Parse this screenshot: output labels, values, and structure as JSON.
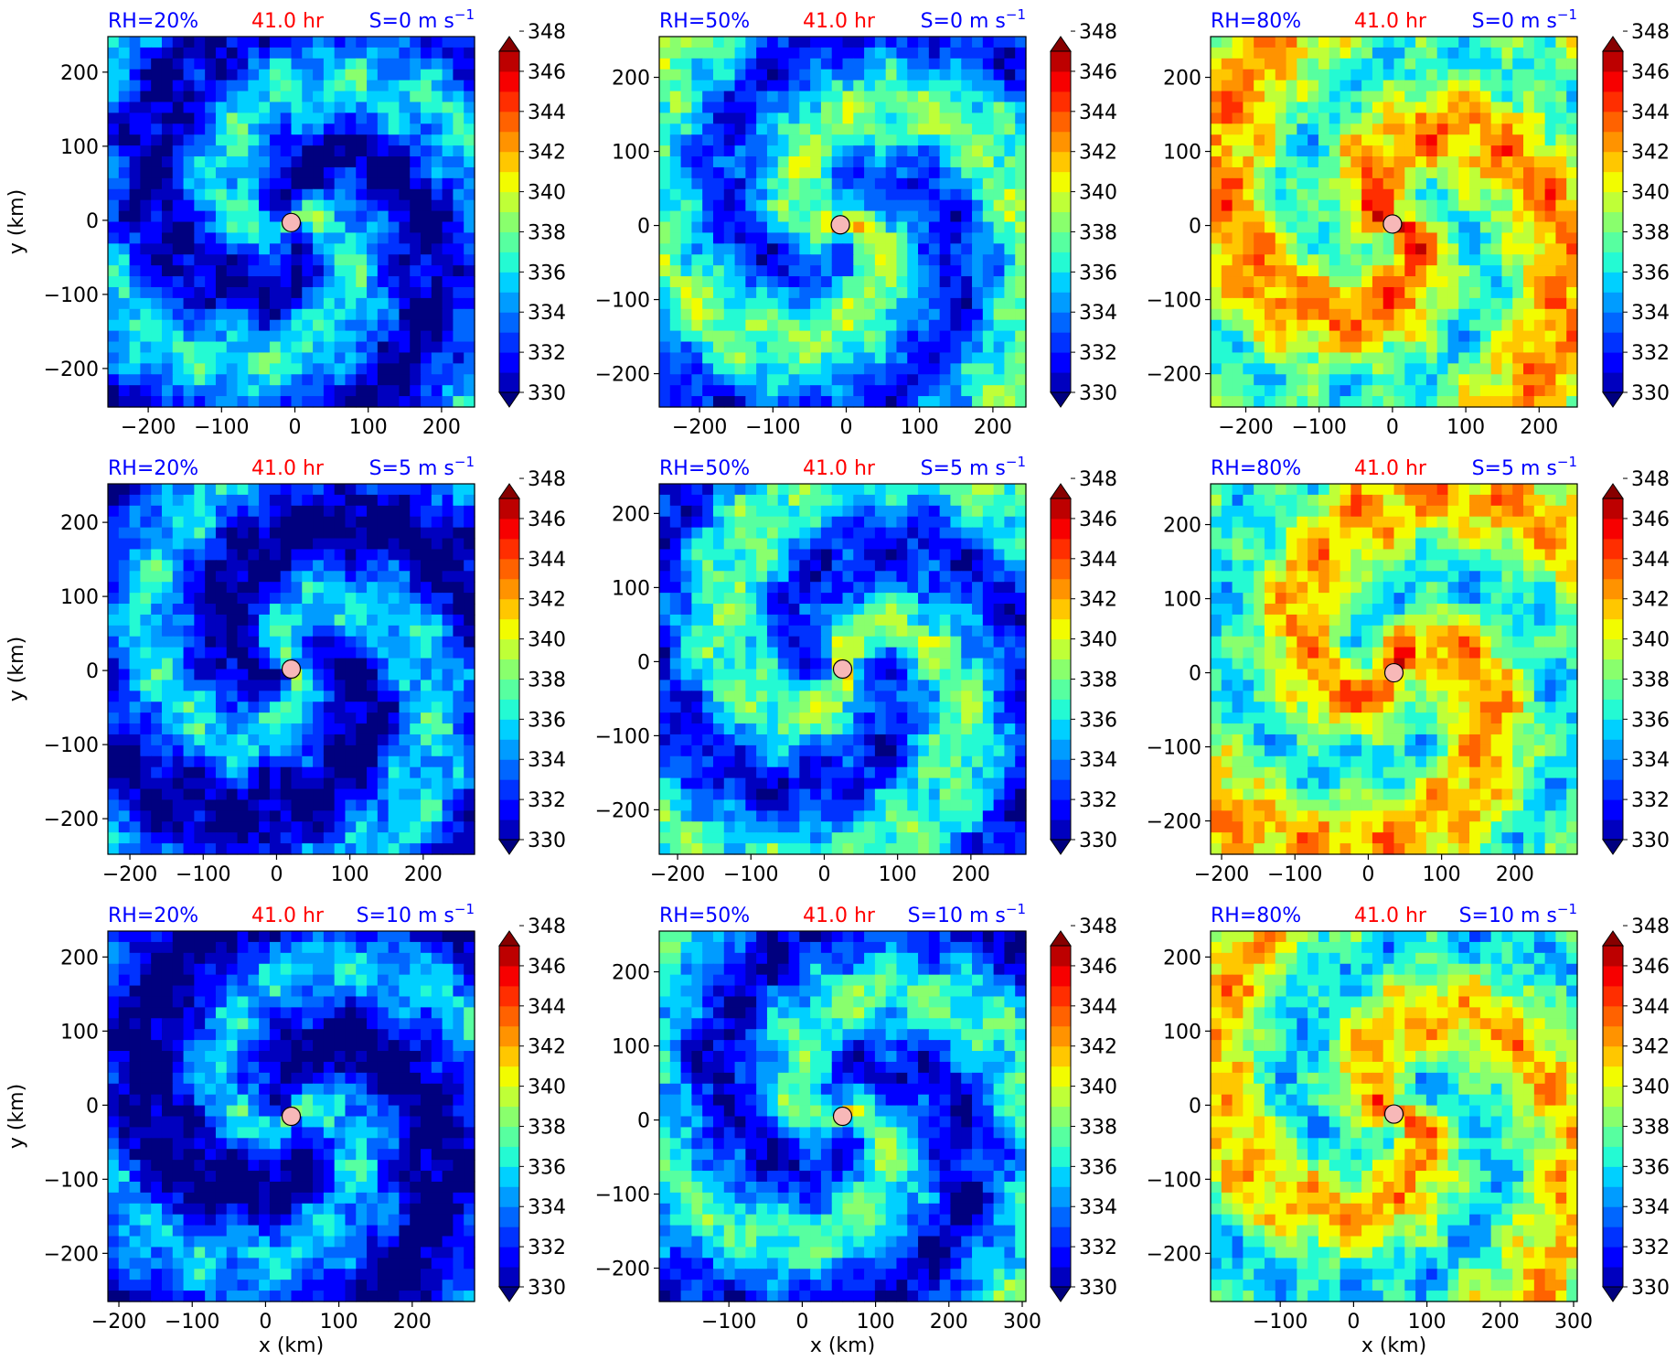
{
  "figure": {
    "colorbar": {
      "tick_labels": [
        "330",
        "332",
        "334",
        "336",
        "338",
        "340",
        "342",
        "344",
        "346",
        "348"
      ],
      "colors": [
        "#00007f",
        "#0000bf",
        "#0000ff",
        "#0032ff",
        "#0066ff",
        "#009cff",
        "#00d0ff",
        "#24fad3",
        "#57ffa0",
        "#89ff6d",
        "#bfff37",
        "#f2fc00",
        "#ffc700",
        "#ff9300",
        "#ff6200",
        "#ff2e00",
        "#f70000",
        "#bd0000",
        "#870000"
      ]
    },
    "labels": {
      "time": "41.0 hr",
      "xlabel": "x (km)",
      "ylabel": "y (km)"
    },
    "colors": {
      "title_blue": "#0000ff",
      "title_red": "#ff0000",
      "center_marker": "#f7b8b8"
    }
  },
  "chart_data": [
    {
      "type": "heatmap",
      "rh": "RH=20%",
      "time": "41.0 hr",
      "shear": "S=0",
      "xticks": [
        "−200",
        "−100",
        "0",
        "100",
        "200"
      ],
      "yticks": [
        "200",
        "100",
        "0",
        "−100",
        "−200"
      ],
      "xlim": [
        -255,
        245
      ],
      "ylim": [
        -252,
        248
      ],
      "center": [
        -5,
        -3
      ],
      "mean_level": 3.5,
      "core_level": 6,
      "ylabel": "y (km)",
      "xlabel": ""
    },
    {
      "type": "heatmap",
      "rh": "RH=50%",
      "time": "41.0 hr",
      "shear": "S=0",
      "xticks": [
        "−200",
        "−100",
        "0",
        "100",
        "200"
      ],
      "yticks": [
        "200",
        "100",
        "0",
        "−100",
        "−200"
      ],
      "xlim": [
        -255,
        245
      ],
      "ylim": [
        -245,
        255
      ],
      "center": [
        -8,
        1
      ],
      "mean_level": 5.5,
      "core_level": 12,
      "ylabel": "",
      "xlabel": ""
    },
    {
      "type": "heatmap",
      "rh": "RH=80%",
      "time": "41.0 hr",
      "shear": "S=0",
      "xticks": [
        "−200",
        "−100",
        "0",
        "100",
        "200"
      ],
      "yticks": [
        "200",
        "100",
        "0",
        "−100",
        "−200"
      ],
      "xlim": [
        -248,
        252
      ],
      "ylim": [
        -245,
        255
      ],
      "center": [
        0,
        2
      ],
      "mean_level": 10,
      "core_level": 17,
      "ylabel": "",
      "xlabel": ""
    },
    {
      "type": "heatmap",
      "rh": "RH=20%",
      "time": "41.0 hr",
      "shear": "S=5",
      "xticks": [
        "−200",
        "−100",
        "0",
        "100",
        "200"
      ],
      "yticks": [
        "200",
        "100",
        "0",
        "−100",
        "−200"
      ],
      "xlim": [
        -230,
        270
      ],
      "ylim": [
        -248,
        252
      ],
      "center": [
        20,
        2
      ],
      "mean_level": 3.0,
      "core_level": 7,
      "ylabel": "y (km)",
      "xlabel": ""
    },
    {
      "type": "heatmap",
      "rh": "RH=50%",
      "time": "41.0 hr",
      "shear": "S=5",
      "xticks": [
        "−200",
        "−100",
        "0",
        "100",
        "200"
      ],
      "yticks": [
        "200",
        "100",
        "0",
        "−100",
        "−200"
      ],
      "xlim": [
        -225,
        275
      ],
      "ylim": [
        -260,
        240
      ],
      "center": [
        25,
        -10
      ],
      "mean_level": 5.0,
      "core_level": 11,
      "ylabel": "",
      "xlabel": ""
    },
    {
      "type": "heatmap",
      "rh": "RH=80%",
      "time": "41.0 hr",
      "shear": "S=5",
      "xticks": [
        "−200",
        "−100",
        "0",
        "100",
        "200"
      ],
      "yticks": [
        "200",
        "100",
        "0",
        "−100",
        "−200"
      ],
      "xlim": [
        -215,
        285
      ],
      "ylim": [
        -245,
        255
      ],
      "center": [
        35,
        0
      ],
      "mean_level": 9.5,
      "core_level": 17,
      "ylabel": "",
      "xlabel": ""
    },
    {
      "type": "heatmap",
      "rh": "RH=20%",
      "time": "41.0 hr",
      "shear": "S=10",
      "xticks": [
        "−200",
        "−100",
        "0",
        "100",
        "200"
      ],
      "yticks": [
        "200",
        "100",
        "0",
        "−100",
        "−200"
      ],
      "xlim": [
        -215,
        285
      ],
      "ylim": [
        -265,
        235
      ],
      "center": [
        35,
        -15
      ],
      "mean_level": 2.5,
      "core_level": 8,
      "ylabel": "y (km)",
      "xlabel": "x (km)"
    },
    {
      "type": "heatmap",
      "rh": "RH=50%",
      "time": "41.0 hr",
      "shear": "S=10",
      "xticks": [
        "−100",
        "0",
        "100",
        "200",
        "300"
      ],
      "yticks": [
        "200",
        "100",
        "0",
        "−100",
        "−200"
      ],
      "xlim": [
        -195,
        305
      ],
      "ylim": [
        -245,
        255
      ],
      "center": [
        55,
        5
      ],
      "mean_level": 4.5,
      "core_level": 10,
      "ylabel": "",
      "xlabel": "x (km)"
    },
    {
      "type": "heatmap",
      "rh": "RH=80%",
      "time": "41.0 hr",
      "shear": "S=10",
      "xticks": [
        "−100",
        "0",
        "100",
        "200",
        "300"
      ],
      "yticks": [
        "200",
        "100",
        "0",
        "−100",
        "−200"
      ],
      "xlim": [
        -195,
        305
      ],
      "ylim": [
        -265,
        235
      ],
      "center": [
        55,
        -12
      ],
      "mean_level": 9.0,
      "core_level": 15,
      "ylabel": "",
      "xlabel": "x (km)"
    }
  ]
}
